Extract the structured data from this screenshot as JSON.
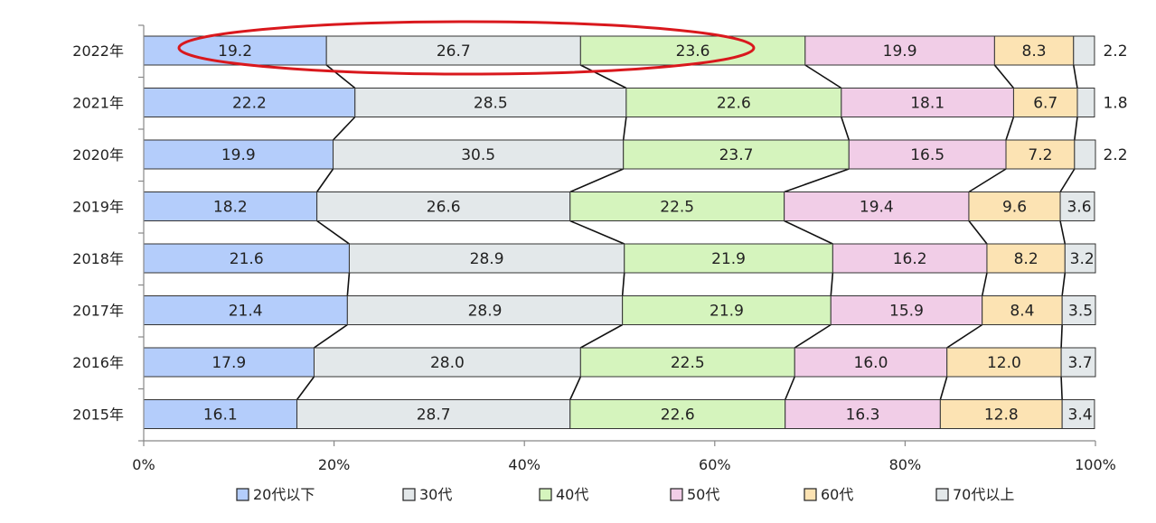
{
  "chart_data": {
    "type": "bar",
    "orientation": "horizontal",
    "stacked": "percent",
    "categories": [
      "2022年",
      "2021年",
      "2020年",
      "2019年",
      "2018年",
      "2017年",
      "2016年",
      "2015年"
    ],
    "series": [
      {
        "name": "20代以下",
        "color": "#b4cdfb",
        "values": [
          19.2,
          22.2,
          19.9,
          18.2,
          21.6,
          21.4,
          17.9,
          16.1
        ]
      },
      {
        "name": "30代",
        "color": "#e3e8ea",
        "values": [
          26.7,
          28.5,
          30.5,
          26.6,
          28.9,
          28.9,
          28.0,
          28.7
        ]
      },
      {
        "name": "40代",
        "color": "#d5f4bd",
        "values": [
          23.6,
          22.6,
          23.7,
          22.5,
          21.9,
          21.9,
          22.5,
          22.6
        ]
      },
      {
        "name": "50代",
        "color": "#f1cde7",
        "values": [
          19.9,
          18.1,
          16.5,
          19.4,
          16.2,
          15.9,
          16.0,
          16.3
        ]
      },
      {
        "name": "60代",
        "color": "#fce3b3",
        "values": [
          8.3,
          6.7,
          7.2,
          9.6,
          8.2,
          8.4,
          12.0,
          12.8
        ]
      },
      {
        "name": "70代以上",
        "color": "#e3e8ea",
        "values": [
          2.2,
          1.8,
          2.2,
          3.6,
          3.2,
          3.5,
          3.7,
          3.4
        ]
      }
    ],
    "value_labels": [
      [
        "19.2",
        "26.7",
        "23.6",
        "19.9",
        "8.3",
        "2.2"
      ],
      [
        "22.2",
        "28.5",
        "22.6",
        "18.1",
        "6.7",
        "1.8"
      ],
      [
        "19.9",
        "30.5",
        "23.7",
        "16.5",
        "7.2",
        "2.2"
      ],
      [
        "18.2",
        "26.6",
        "22.5",
        "19.4",
        "9.6",
        "3.6"
      ],
      [
        "21.6",
        "28.9",
        "21.9",
        "16.2",
        "8.2",
        "3.2"
      ],
      [
        "21.4",
        "28.9",
        "21.9",
        "15.9",
        "8.4",
        "3.5"
      ],
      [
        "17.9",
        "28.0",
        "22.5",
        "16.0",
        "12.0",
        "3.7"
      ],
      [
        "16.1",
        "28.7",
        "22.6",
        "16.3",
        "12.8",
        "3.4"
      ]
    ],
    "x_ticks": [
      "0%",
      "20%",
      "40%",
      "60%",
      "80%",
      "100%"
    ],
    "xlim": [
      0,
      100
    ],
    "legend_position": "bottom",
    "series_lines": true,
    "annotation": {
      "shape": "ellipse",
      "color": "#d9181d",
      "highlight_row": "2022年",
      "highlight_series": [
        "20代以下",
        "30代",
        "40代"
      ]
    }
  }
}
